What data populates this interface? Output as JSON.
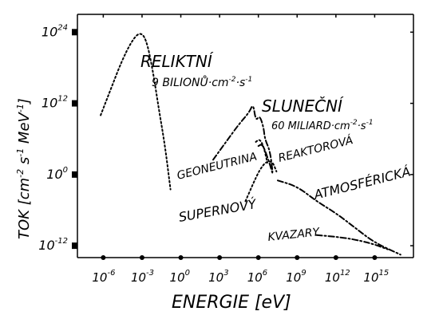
{
  "chart_data": {
    "type": "line",
    "xlabel": "ENERGIE [eV]",
    "ylabel": "TOK [cm⁻² s⁻¹ MeV⁻¹]",
    "xscale": "log",
    "yscale": "log",
    "xlim_log10_eV": [
      -8,
      18
    ],
    "ylim_log10_flux": [
      -14,
      27
    ],
    "x_ticks": [
      {
        "label_base": "10",
        "label_exp": "-6"
      },
      {
        "label_base": "10",
        "label_exp": "-3"
      },
      {
        "label_base": "10",
        "label_exp": "0"
      },
      {
        "label_base": "10",
        "label_exp": "3"
      },
      {
        "label_base": "10",
        "label_exp": "6"
      },
      {
        "label_base": "10",
        "label_exp": "9"
      },
      {
        "label_base": "10",
        "label_exp": "12"
      },
      {
        "label_base": "10",
        "label_exp": "15"
      }
    ],
    "y_ticks": [
      {
        "label_base": "10",
        "label_exp": "24"
      },
      {
        "label_base": "10",
        "label_exp": "12"
      },
      {
        "label_base": "10",
        "label_exp": "0"
      },
      {
        "label_base": "10",
        "label_exp": "-12"
      }
    ],
    "series": [
      {
        "name": "RELIKTNÍ",
        "note": "9 BILIONŮ·cm⁻²·s⁻¹",
        "style": "dotted",
        "points": [
          [
            -6.2,
            10.0
          ],
          [
            -5.4,
            14.5
          ],
          [
            -4.6,
            19.0
          ],
          [
            -3.8,
            22.5
          ],
          [
            -3.2,
            24.0
          ],
          [
            -2.7,
            23.0
          ],
          [
            -2.2,
            18.0
          ],
          [
            -1.7,
            11.0
          ],
          [
            -1.2,
            4.5
          ],
          [
            -0.8,
            -2.5
          ]
        ]
      },
      {
        "name": "SLUNEČNÍ",
        "note": "60 MILIARD·cm⁻²·s⁻¹",
        "style": "dash-dot",
        "points": [
          [
            2.5,
            2.5
          ],
          [
            3.5,
            5.5
          ],
          [
            4.5,
            8.5
          ],
          [
            5.3,
            10.5
          ],
          [
            5.6,
            12.0
          ],
          [
            5.8,
            9.0
          ],
          [
            6.1,
            10.0
          ],
          [
            6.4,
            8.0
          ],
          [
            6.5,
            6.0
          ],
          [
            6.9,
            4.0
          ],
          [
            7.1,
            0.5
          ]
        ]
      },
      {
        "name": "GEONEUTRINA",
        "style": "dotted",
        "points": [
          [
            5.8,
            5.5
          ],
          [
            6.1,
            6.0
          ],
          [
            6.4,
            4.8
          ],
          [
            6.7,
            2.0
          ]
        ]
      },
      {
        "name": "REAKTOROVÁ",
        "style": "dash-dot",
        "points": [
          [
            6.0,
            4.8
          ],
          [
            6.3,
            5.2
          ],
          [
            6.7,
            3.0
          ],
          [
            7.1,
            0.2
          ]
        ]
      },
      {
        "name": "SUPERNOVÝ",
        "style": "dotted",
        "points": [
          [
            5.0,
            -4.5
          ],
          [
            5.6,
            -1.5
          ],
          [
            6.1,
            0.8
          ],
          [
            6.6,
            2.2
          ],
          [
            7.1,
            2.2
          ],
          [
            7.4,
            0.5
          ]
        ]
      },
      {
        "name": "ATMOSFÉRICKÁ",
        "style": "dash-dot",
        "points": [
          [
            7.5,
            -1.0
          ],
          [
            9.0,
            -2.0
          ],
          [
            10.5,
            -4.5
          ],
          [
            12.0,
            -6.5
          ],
          [
            13.5,
            -9.0
          ],
          [
            15.0,
            -11.5
          ],
          [
            17.0,
            -13.5
          ]
        ]
      },
      {
        "name": "KVAZARY",
        "style": "dash-dot",
        "points": [
          [
            10.5,
            -10.2
          ],
          [
            12.5,
            -10.6
          ],
          [
            14.0,
            -11.2
          ],
          [
            15.0,
            -11.8
          ],
          [
            16.0,
            -12.6
          ]
        ]
      }
    ],
    "labels": {
      "relikt_title": "RELIKTNÍ",
      "relikt_sub_pre": "9 BILIONŮ·cm",
      "relikt_sub_exp1": "-2",
      "relikt_sub_mid": "·s",
      "relikt_sub_exp2": "-1",
      "slun_title": "SLUNEČNÍ",
      "slun_sub_pre": "60 MILIARD·cm",
      "slun_sub_exp1": "-2",
      "slun_sub_mid": "·s",
      "slun_sub_exp2": "-1",
      "geo": "GEONEUTRINA",
      "reaktor": "REAKTOROVÁ",
      "atmos": "ATMOSFÉRICKÁ",
      "super": "SUPERNOVÝ",
      "kvaz": "KVAZARY",
      "xlabel": "ENERGIE [eV]",
      "ylabel_pre": "TOK [cm",
      "ylabel_e1": "-2",
      "ylabel_m1": " s",
      "ylabel_e2": "-1",
      "ylabel_m2": " MeV",
      "ylabel_e3": "-1",
      "ylabel_post": "]"
    },
    "grid": false,
    "legend": "none"
  }
}
